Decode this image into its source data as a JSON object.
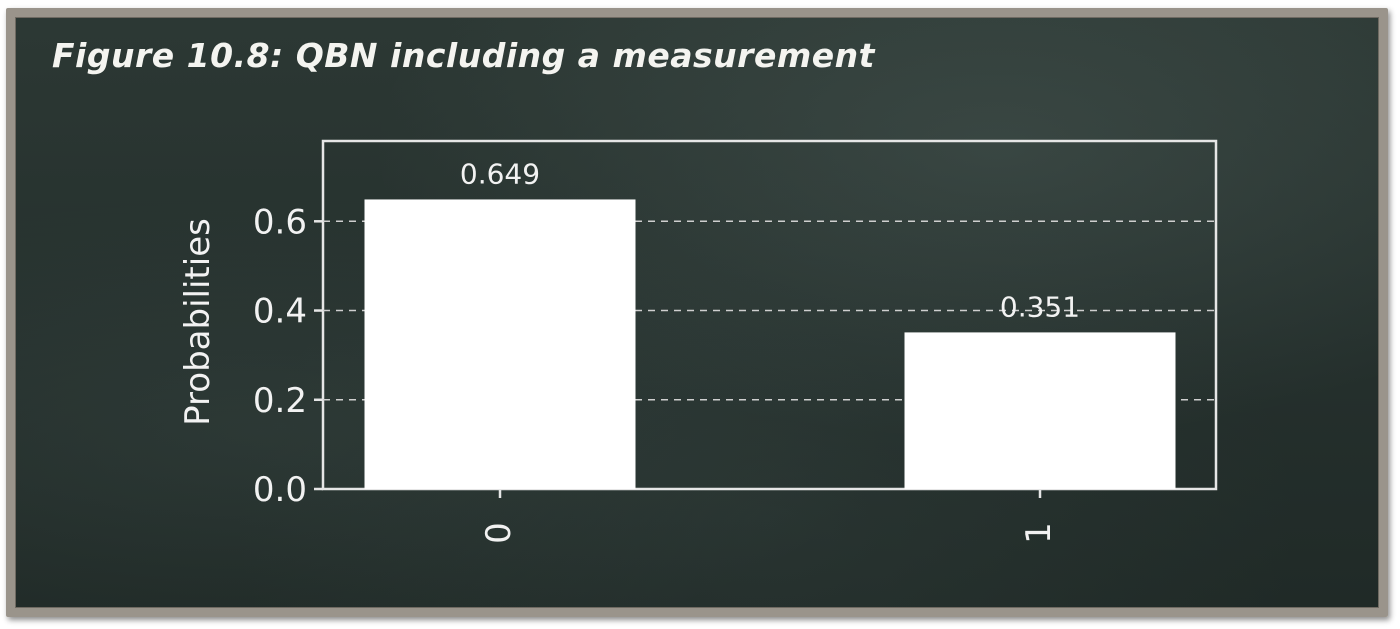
{
  "header": {
    "title": "Figure 10.8: QBN including a measurement"
  },
  "colors": {
    "background": "#25302d",
    "bar": "#ffffff",
    "text": "#f2f2f2",
    "frame": "#9a948b"
  },
  "chart_data": {
    "type": "bar",
    "categories": [
      "0",
      "1"
    ],
    "values": [
      0.649,
      0.351
    ],
    "data_labels": [
      "0.649",
      "0.351"
    ],
    "title": "",
    "xlabel": "",
    "ylabel": "Probabilities",
    "ylim": [
      0,
      0.78
    ],
    "yticks": [
      0.0,
      0.2,
      0.4,
      0.6
    ],
    "ytick_labels": [
      "0.0",
      "0.2",
      "0.4",
      "0.6"
    ],
    "grid": "horizontal dashed",
    "xtick_rotation": "vertical"
  }
}
